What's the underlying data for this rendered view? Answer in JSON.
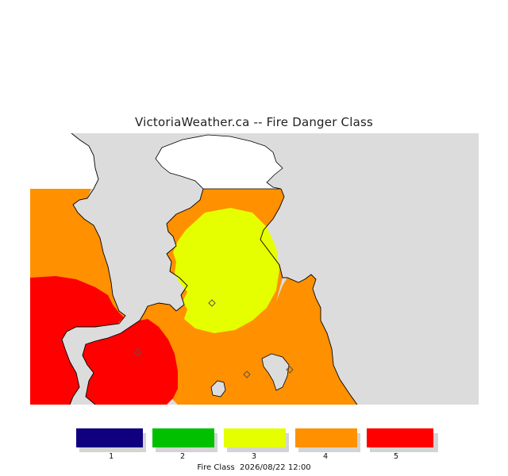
{
  "title": "VictoriaWeather.ca -- Fire Danger Class",
  "legend": {
    "items": [
      {
        "label": "1",
        "color": "#100080"
      },
      {
        "label": "2",
        "color": "#00c000"
      },
      {
        "label": "3",
        "color": "#e6ff00"
      },
      {
        "label": "4",
        "color": "#ff9000"
      },
      {
        "label": "5",
        "color": "#ff0000"
      }
    ]
  },
  "footer": {
    "label": "Fire Class",
    "timestamp": "2026/08/22 12:00"
  },
  "map_colors": {
    "water": "#dcdcdc",
    "land_outside": "#ffffff",
    "class4": "#ff9000",
    "class5": "#ff0000",
    "class3": "#e6ff00",
    "coast": "#000000"
  }
}
